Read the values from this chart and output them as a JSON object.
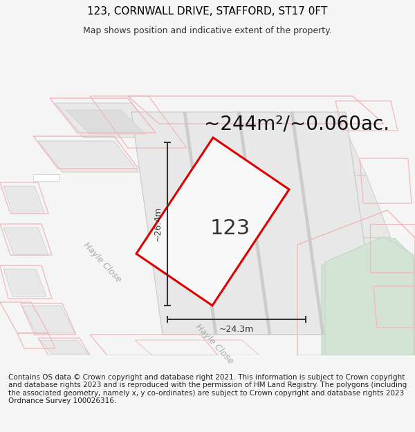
{
  "title": "123, CORNWALL DRIVE, STAFFORD, ST17 0FT",
  "subtitle": "Map shows position and indicative extent of the property.",
  "area_label": "~244m²/~0.060ac.",
  "plot_number": "123",
  "dim_width": "~24.3m",
  "dim_height": "~26.4m",
  "street_label1": "Hayle Close",
  "street_label2": "Hayle Close",
  "footer": "Contains OS data © Crown copyright and database right 2021. This information is subject to Crown copyright and database rights 2023 and is reproduced with the permission of HM Land Registry. The polygons (including the associated geometry, namely x, y co-ordinates) are subject to Crown copyright and database rights 2023 Ordnance Survey 100026316.",
  "bg_color": "#f5f5f5",
  "map_bg": "#ffffff",
  "block_fill": "#e8e8e8",
  "block_edge": "#cccccc",
  "pink_edge": "#f0b8b8",
  "red_edge": "#dd0000",
  "green_fill": "#d4e4d4",
  "green_edge": "#c0d8c0",
  "dim_color": "#333333",
  "title_fontsize": 11,
  "subtitle_fontsize": 9,
  "area_fontsize": 20,
  "plot_num_fontsize": 22,
  "footer_fontsize": 7.5
}
